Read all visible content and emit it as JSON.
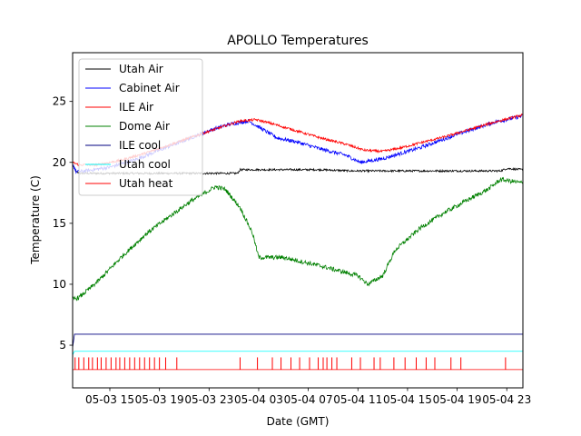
{
  "chart_data": {
    "type": "line",
    "title": "APOLLO Temperatures",
    "xlabel": "Date (GMT)",
    "ylabel": "Temperature (C)",
    "x_unit": "hours since 05-03 12:00 GMT",
    "xlim": [
      0,
      36.3
    ],
    "ylim": [
      1.5,
      29.0
    ],
    "x_ticks": [
      {
        "value": 3,
        "label": "05-03 15"
      },
      {
        "value": 7,
        "label": "05-03 19"
      },
      {
        "value": 11,
        "label": "05-03 23"
      },
      {
        "value": 15,
        "label": "05-04 03"
      },
      {
        "value": 19,
        "label": "05-04 07"
      },
      {
        "value": 23,
        "label": "05-04 11"
      },
      {
        "value": 27,
        "label": "05-04 15"
      },
      {
        "value": 31,
        "label": "05-04 19"
      },
      {
        "value": 35,
        "label": "05-04 23"
      }
    ],
    "y_ticks": [
      5,
      10,
      15,
      20,
      25
    ],
    "legend_position": "top-left",
    "series": [
      {
        "name": "Utah Air",
        "color": "#000000",
        "noise": 0.08,
        "x": [
          0,
          0.3,
          0.6,
          1,
          3,
          6,
          9,
          11.5,
          13.3,
          13.5,
          15,
          18,
          20,
          22.5,
          25,
          28,
          31,
          34.5,
          35,
          36.3
        ],
        "y": [
          19.8,
          19.2,
          19.1,
          19.1,
          19.1,
          19.1,
          19.1,
          19.1,
          19.1,
          19.4,
          19.4,
          19.4,
          19.4,
          19.3,
          19.3,
          19.3,
          19.3,
          19.3,
          19.5,
          19.4
        ]
      },
      {
        "name": "Cabinet Air",
        "color": "#0000ff",
        "noise": 0.15,
        "x": [
          0,
          0.3,
          1,
          3,
          5,
          7,
          9,
          11,
          12.5,
          14.2,
          15.5,
          16.5,
          18,
          20,
          22,
          23.2,
          25,
          28,
          31,
          34,
          36.3
        ],
        "y": [
          19.9,
          19.2,
          19.3,
          19.6,
          20.2,
          21.0,
          21.8,
          22.6,
          23.1,
          23.4,
          22.6,
          22.0,
          21.7,
          21.1,
          20.6,
          20.0,
          20.3,
          21.2,
          22.3,
          23.3,
          23.8
        ]
      },
      {
        "name": "ILE Air",
        "color": "#ff0000",
        "noise": 0.1,
        "x": [
          0,
          0.5,
          2,
          4,
          6,
          8,
          10,
          12,
          13.5,
          14.8,
          16,
          18,
          20,
          22,
          23.5,
          25,
          26.5,
          28,
          30,
          32,
          34,
          36.3
        ],
        "y": [
          20.0,
          19.8,
          19.8,
          20.2,
          20.8,
          21.5,
          22.2,
          22.9,
          23.4,
          23.5,
          23.2,
          22.6,
          22.0,
          21.5,
          21.0,
          20.9,
          21.2,
          21.6,
          22.1,
          22.7,
          23.3,
          23.9
        ]
      },
      {
        "name": "Dome Air",
        "color": "#008000",
        "noise": 0.18,
        "x": [
          0,
          0.5,
          2,
          4,
          6,
          8,
          9.5,
          11.5,
          12.3,
          13.5,
          14.5,
          15,
          17,
          20,
          23,
          23.8,
          25,
          26,
          28,
          30,
          32,
          33.5,
          34.5,
          36.3
        ],
        "y": [
          8.8,
          8.9,
          10.2,
          12.3,
          14.2,
          15.7,
          16.8,
          18.0,
          17.8,
          16.3,
          14.2,
          12.2,
          12.2,
          11.5,
          10.7,
          10.0,
          10.7,
          12.8,
          14.6,
          15.9,
          17.0,
          17.8,
          18.6,
          18.3
        ]
      },
      {
        "name": "ILE cool",
        "color": "#000080",
        "noise": 0,
        "x": [
          0,
          0.15,
          36.3
        ],
        "y": [
          4.8,
          5.9,
          5.9
        ]
      },
      {
        "name": "Utah cool",
        "color": "#00ffff",
        "noise": 0,
        "x": [
          0,
          0.15,
          36.3
        ],
        "y": [
          4.2,
          4.5,
          4.5
        ]
      },
      {
        "name": "Utah heat",
        "color": "#ff0000",
        "noise": 0,
        "x": [
          0,
          36.3
        ],
        "y": [
          3.0,
          3.0
        ],
        "pulse_top": 4.0,
        "pulses": [
          0.2,
          0.5,
          0.9,
          1.3,
          1.6,
          2.0,
          2.3,
          2.7,
          3.1,
          3.5,
          3.8,
          4.2,
          4.6,
          5.0,
          5.4,
          5.8,
          6.2,
          6.6,
          7.0,
          7.5,
          8.4,
          13.5,
          14.9,
          16.1,
          16.8,
          17.6,
          18.3,
          19.1,
          19.8,
          20.2,
          20.5,
          20.9,
          21.3,
          22.5,
          23.2,
          24.3,
          24.8,
          25.9,
          26.8,
          27.7,
          28.5,
          29.2,
          30.5,
          31.3,
          34.9
        ]
      }
    ]
  }
}
